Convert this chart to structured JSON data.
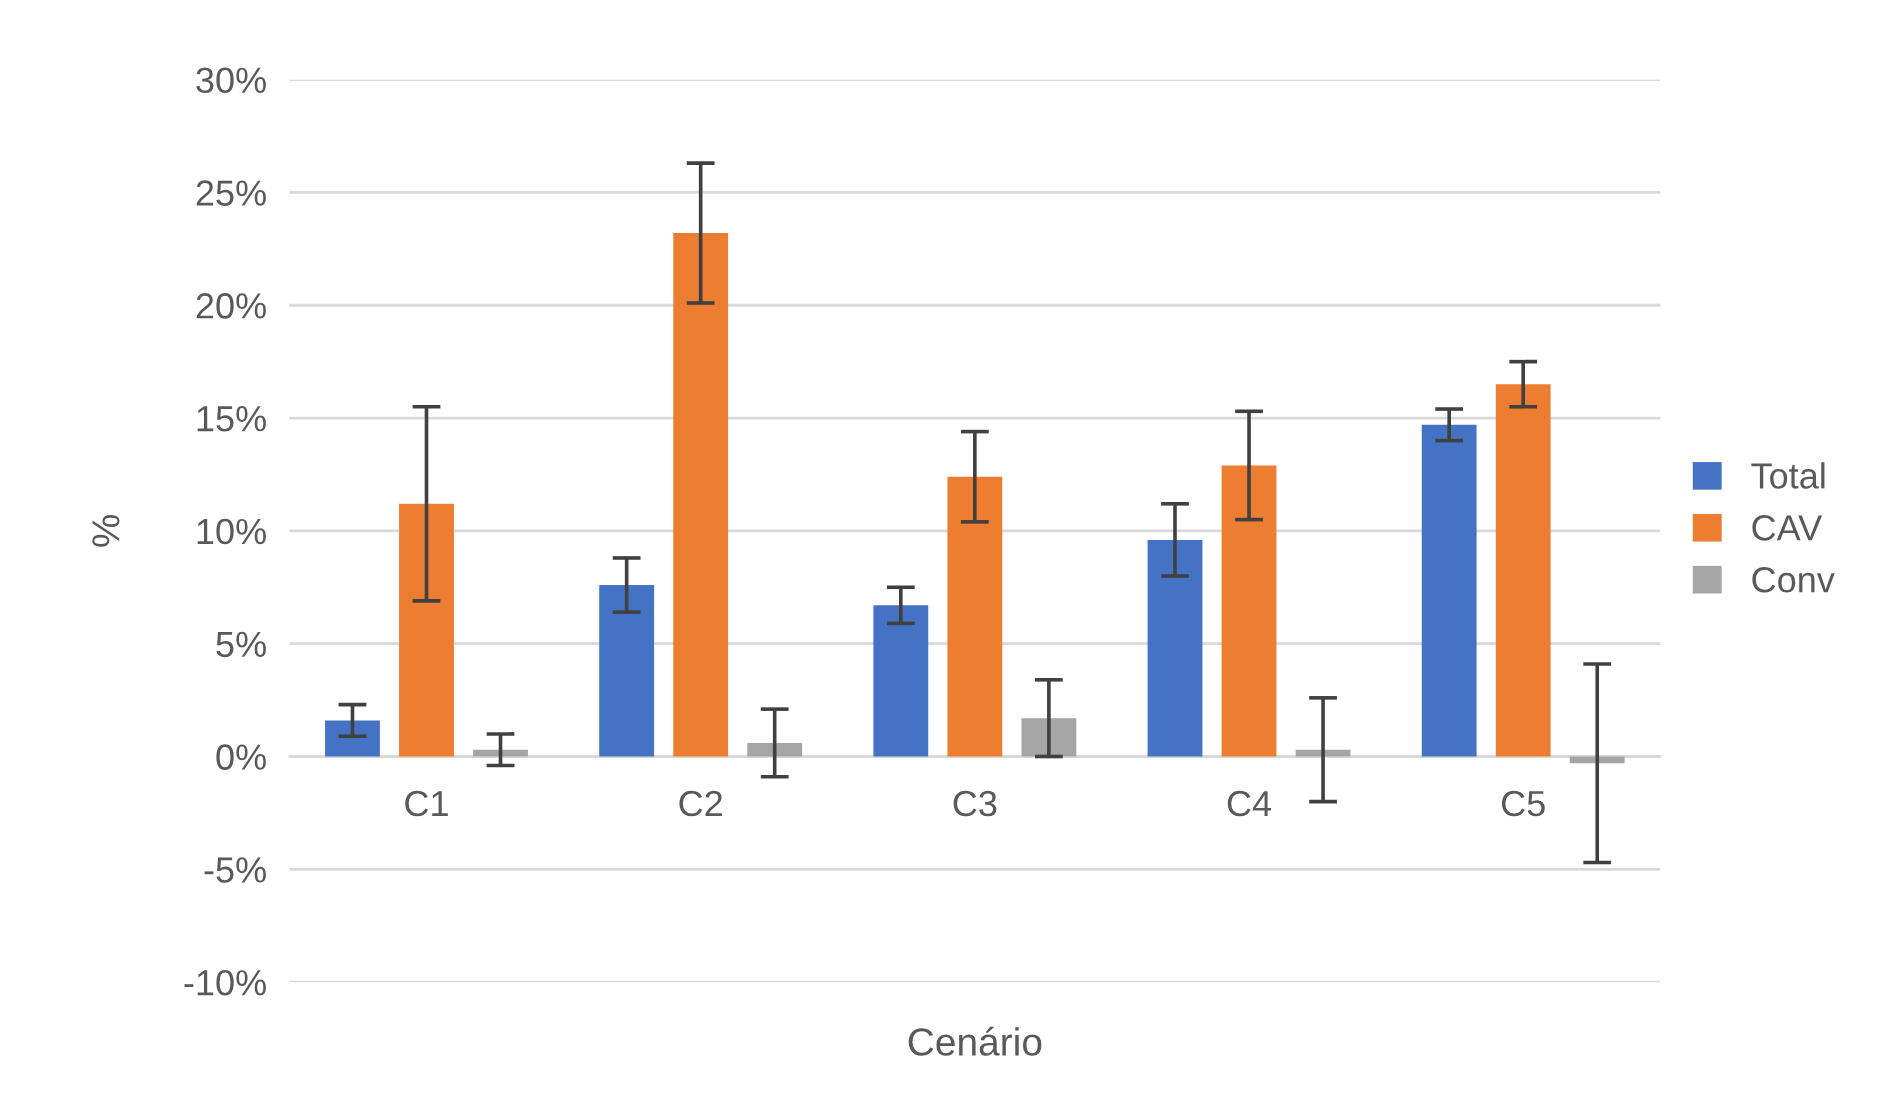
{
  "chart_data": {
    "type": "bar",
    "xlabel": "Cenário",
    "ylabel": "%",
    "categories": [
      "C1",
      "C2",
      "C3",
      "C4",
      "C5"
    ],
    "series": [
      {
        "name": "Total",
        "color": "#4472c4",
        "values": [
          1.6,
          7.6,
          6.7,
          9.6,
          14.7
        ],
        "errors": [
          0.7,
          1.2,
          0.8,
          1.6,
          0.7
        ]
      },
      {
        "name": "CAV",
        "color": "#ed7d31",
        "values": [
          11.2,
          23.2,
          12.4,
          12.9,
          16.5
        ],
        "errors": [
          4.3,
          3.1,
          2.0,
          2.4,
          1.0
        ]
      },
      {
        "name": "Conv",
        "color": "#a5a5a5",
        "values": [
          0.3,
          0.6,
          1.7,
          0.3,
          -0.3
        ],
        "errors": [
          0.7,
          1.5,
          1.7,
          2.3,
          4.4
        ]
      }
    ],
    "ylim": [
      -10,
      30
    ],
    "yticks": [
      {
        "value": -10,
        "label": "-10%"
      },
      {
        "value": -5,
        "label": "-5%"
      },
      {
        "value": 0,
        "label": "0%"
      },
      {
        "value": 5,
        "label": "5%"
      },
      {
        "value": 10,
        "label": "10%"
      },
      {
        "value": 15,
        "label": "15%"
      },
      {
        "value": 20,
        "label": "20%"
      },
      {
        "value": 25,
        "label": "25%"
      },
      {
        "value": 30,
        "label": "30%"
      }
    ],
    "grid": "y",
    "legend": "right"
  }
}
